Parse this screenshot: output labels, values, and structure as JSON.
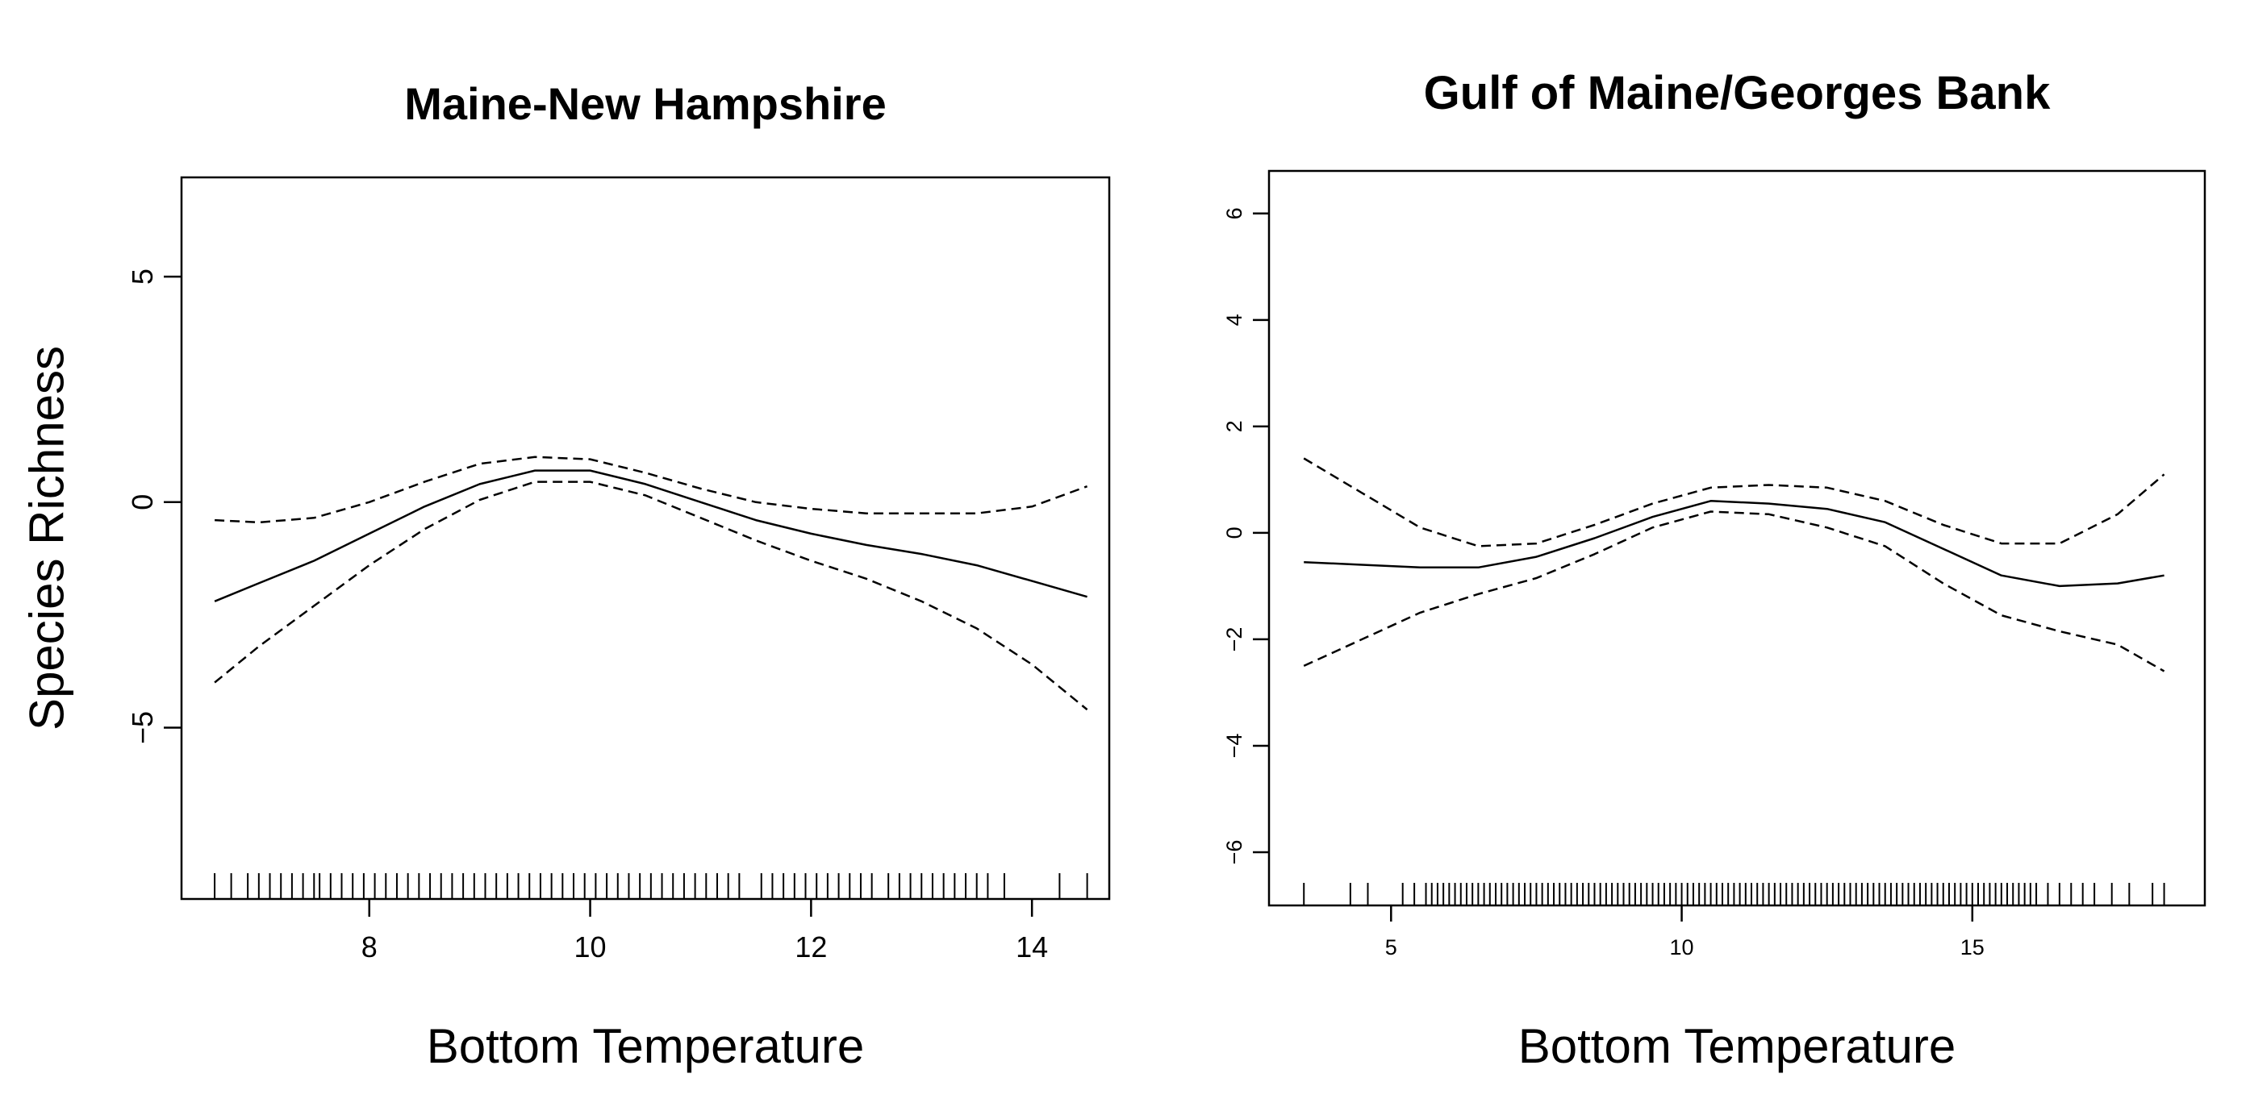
{
  "chart_data": [
    {
      "type": "line",
      "title": "Maine-New Hampshire",
      "xlabel": "Bottom Temperature",
      "ylabel": "Species Richness",
      "xlim": [
        6.3,
        14.7
      ],
      "ylim": [
        -8.8,
        7.2
      ],
      "xticks": [
        8,
        10,
        12,
        14
      ],
      "yticks": [
        -5,
        0,
        5
      ],
      "grid": false,
      "legend": "none",
      "series": [
        {
          "role": "fit",
          "style": "solid",
          "x": [
            6.6,
            7.0,
            7.5,
            8.0,
            8.5,
            9.0,
            9.5,
            10.0,
            10.5,
            11.0,
            11.5,
            12.0,
            12.5,
            13.0,
            13.5,
            14.0,
            14.5
          ],
          "y": [
            -2.2,
            -1.8,
            -1.3,
            -0.7,
            -0.1,
            0.4,
            0.7,
            0.7,
            0.4,
            0.0,
            -0.4,
            -0.7,
            -0.95,
            -1.15,
            -1.4,
            -1.75,
            -2.1
          ]
        },
        {
          "role": "upper",
          "style": "dashed",
          "x": [
            6.6,
            7.0,
            7.5,
            8.0,
            8.5,
            9.0,
            9.5,
            10.0,
            10.5,
            11.0,
            11.5,
            12.0,
            12.5,
            13.0,
            13.5,
            14.0,
            14.5
          ],
          "y": [
            -0.4,
            -0.45,
            -0.35,
            0.0,
            0.45,
            0.85,
            1.0,
            0.95,
            0.65,
            0.3,
            0.0,
            -0.15,
            -0.25,
            -0.25,
            -0.25,
            -0.1,
            0.35
          ]
        },
        {
          "role": "lower",
          "style": "dashed",
          "x": [
            6.6,
            7.0,
            7.5,
            8.0,
            8.5,
            9.0,
            9.5,
            10.0,
            10.5,
            11.0,
            11.5,
            12.0,
            12.5,
            13.0,
            13.5,
            14.0,
            14.5
          ],
          "y": [
            -4.0,
            -3.2,
            -2.3,
            -1.4,
            -0.6,
            0.05,
            0.45,
            0.45,
            0.15,
            -0.35,
            -0.85,
            -1.3,
            -1.7,
            -2.2,
            -2.8,
            -3.6,
            -4.6
          ]
        }
      ],
      "rug": [
        6.6,
        6.75,
        6.9,
        7.0,
        7.1,
        7.2,
        7.3,
        7.4,
        7.5,
        7.55,
        7.65,
        7.75,
        7.85,
        7.95,
        8.05,
        8.15,
        8.25,
        8.35,
        8.45,
        8.55,
        8.65,
        8.75,
        8.85,
        8.95,
        9.05,
        9.15,
        9.25,
        9.35,
        9.45,
        9.55,
        9.65,
        9.75,
        9.85,
        9.95,
        10.05,
        10.15,
        10.25,
        10.35,
        10.45,
        10.55,
        10.65,
        10.75,
        10.85,
        10.95,
        11.05,
        11.15,
        11.25,
        11.35,
        11.55,
        11.65,
        11.75,
        11.85,
        11.95,
        12.05,
        12.15,
        12.25,
        12.35,
        12.45,
        12.55,
        12.7,
        12.8,
        12.9,
        13.0,
        13.1,
        13.2,
        13.3,
        13.4,
        13.5,
        13.6,
        13.75,
        14.25,
        14.5
      ]
    },
    {
      "type": "line",
      "title": "Gulf of Maine/Georges Bank",
      "xlabel": "Bottom Temperature",
      "ylabel": "",
      "xlim": [
        2.9,
        19.0
      ],
      "ylim": [
        -7.0,
        6.8
      ],
      "xticks": [
        5,
        10,
        15
      ],
      "yticks": [
        -6,
        -4,
        -2,
        0,
        2,
        4,
        6
      ],
      "grid": false,
      "legend": "none",
      "series": [
        {
          "role": "fit",
          "style": "solid",
          "x": [
            3.5,
            4.5,
            5.5,
            6.5,
            7.5,
            8.5,
            9.5,
            10.5,
            11.5,
            12.5,
            13.5,
            14.5,
            15.5,
            16.5,
            17.5,
            18.3
          ],
          "y": [
            -0.55,
            -0.6,
            -0.65,
            -0.65,
            -0.45,
            -0.1,
            0.3,
            0.6,
            0.55,
            0.45,
            0.2,
            -0.3,
            -0.8,
            -1.0,
            -0.95,
            -0.8
          ]
        },
        {
          "role": "upper",
          "style": "dashed",
          "x": [
            3.5,
            4.5,
            5.5,
            6.5,
            7.5,
            8.5,
            9.5,
            10.5,
            11.5,
            12.5,
            13.5,
            14.5,
            15.5,
            16.5,
            17.5,
            18.3
          ],
          "y": [
            1.4,
            0.75,
            0.1,
            -0.25,
            -0.2,
            0.15,
            0.55,
            0.85,
            0.9,
            0.85,
            0.6,
            0.15,
            -0.2,
            -0.2,
            0.35,
            1.1
          ]
        },
        {
          "role": "lower",
          "style": "dashed",
          "x": [
            3.5,
            4.5,
            5.5,
            6.5,
            7.5,
            8.5,
            9.5,
            10.5,
            11.5,
            12.5,
            13.5,
            14.5,
            15.5,
            16.5,
            17.5,
            18.3
          ],
          "y": [
            -2.5,
            -2.0,
            -1.5,
            -1.15,
            -0.85,
            -0.4,
            0.1,
            0.4,
            0.35,
            0.1,
            -0.25,
            -0.95,
            -1.55,
            -1.85,
            -2.1,
            -2.6
          ]
        }
      ],
      "rug": [
        3.5,
        4.3,
        4.6,
        5.2,
        5.4,
        5.6,
        5.7,
        5.8,
        5.9,
        6.0,
        6.1,
        6.2,
        6.3,
        6.4,
        6.5,
        6.6,
        6.7,
        6.8,
        6.9,
        7.0,
        7.1,
        7.2,
        7.3,
        7.4,
        7.5,
        7.6,
        7.7,
        7.8,
        7.9,
        8.0,
        8.1,
        8.2,
        8.3,
        8.4,
        8.5,
        8.6,
        8.7,
        8.8,
        8.9,
        9.0,
        9.1,
        9.2,
        9.3,
        9.4,
        9.5,
        9.6,
        9.7,
        9.8,
        9.9,
        10.0,
        10.1,
        10.2,
        10.3,
        10.4,
        10.5,
        10.6,
        10.7,
        10.8,
        10.9,
        11.0,
        11.1,
        11.2,
        11.3,
        11.4,
        11.5,
        11.6,
        11.7,
        11.8,
        11.9,
        12.0,
        12.1,
        12.2,
        12.3,
        12.4,
        12.5,
        12.6,
        12.7,
        12.8,
        12.9,
        13.0,
        13.1,
        13.2,
        13.3,
        13.4,
        13.5,
        13.6,
        13.7,
        13.8,
        13.9,
        14.0,
        14.1,
        14.2,
        14.3,
        14.4,
        14.5,
        14.6,
        14.7,
        14.8,
        14.9,
        15.0,
        15.1,
        15.2,
        15.3,
        15.4,
        15.5,
        15.6,
        15.7,
        15.8,
        15.9,
        16.0,
        16.1,
        16.3,
        16.5,
        16.7,
        16.9,
        17.1,
        17.4,
        17.7,
        18.1,
        18.3
      ]
    }
  ]
}
